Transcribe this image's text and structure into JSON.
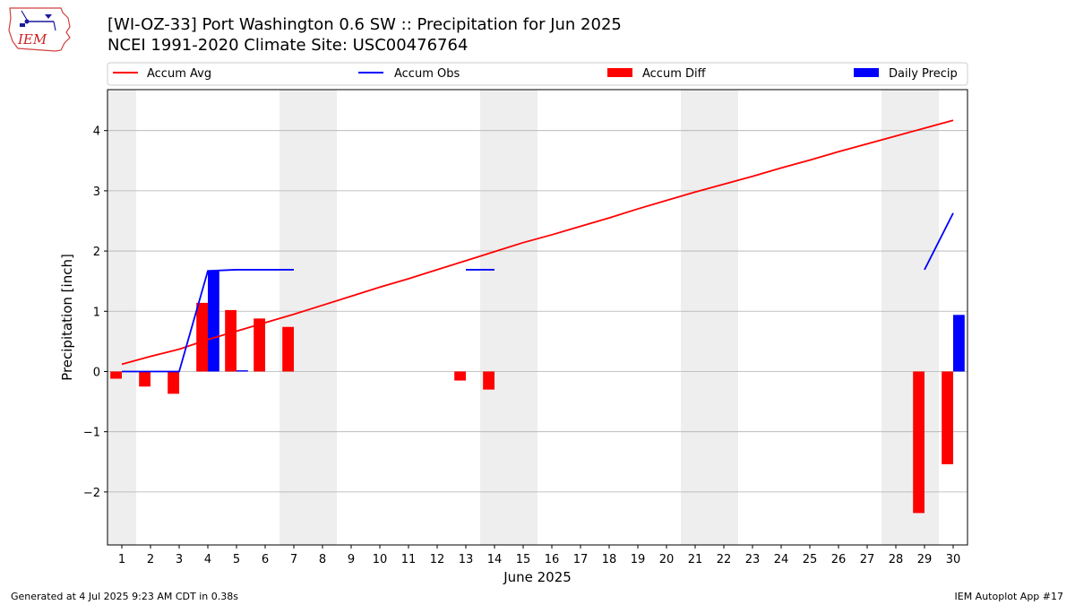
{
  "header": {
    "title_line1": "[WI-OZ-33] Port Washington 0.6 SW :: Precipitation for Jun 2025",
    "title_line2": "NCEI 1991-2020 Climate Site: USC00476764",
    "logo_text": "IEM"
  },
  "footer": {
    "generated": "Generated at 4 Jul 2025 9:23 AM CDT in 0.38s",
    "app": "IEM Autoplot App #17"
  },
  "colors": {
    "accum_avg": "#ff0000",
    "accum_obs": "#0000ff",
    "accum_diff": "#ff0000",
    "daily_precip": "#0000ff",
    "weekend_shade": "#eeeeee",
    "grid": "#b0b0b0"
  },
  "chart_data": {
    "type": "bar",
    "xlabel": "June 2025",
    "ylabel": "Precipitation [inch]",
    "xlim": [
      0.5,
      30.5
    ],
    "ylim": [
      -2.88,
      4.68
    ],
    "yticks": [
      -2,
      -1,
      0,
      1,
      2,
      3,
      4
    ],
    "ytick_labels": [
      "−2",
      "−1",
      "0",
      "1",
      "2",
      "3",
      "4"
    ],
    "days": [
      1,
      2,
      3,
      4,
      5,
      6,
      7,
      8,
      9,
      10,
      11,
      12,
      13,
      14,
      15,
      16,
      17,
      18,
      19,
      20,
      21,
      22,
      23,
      24,
      25,
      26,
      27,
      28,
      29,
      30
    ],
    "grid": "horizontal",
    "legend": {
      "placement": "top",
      "entries": [
        "Accum Avg",
        "Accum Obs",
        "Accum Diff",
        "Daily Precip"
      ]
    },
    "weekend_shading": [
      [
        1,
        1
      ],
      [
        7,
        8
      ],
      [
        14,
        15
      ],
      [
        21,
        22
      ],
      [
        28,
        29
      ]
    ],
    "series": [
      {
        "name": "Accum Avg",
        "kind": "line",
        "color": "#ff0000",
        "x": [
          1,
          2,
          3,
          4,
          5,
          6,
          7,
          8,
          9,
          10,
          11,
          12,
          13,
          14,
          15,
          16,
          17,
          18,
          19,
          20,
          21,
          22,
          23,
          24,
          25,
          26,
          27,
          28,
          29,
          30
        ],
        "values": [
          0.12,
          0.25,
          0.37,
          0.53,
          0.67,
          0.81,
          0.95,
          1.1,
          1.25,
          1.4,
          1.54,
          1.69,
          1.84,
          1.99,
          2.14,
          2.27,
          2.41,
          2.55,
          2.7,
          2.84,
          2.98,
          3.11,
          3.24,
          3.38,
          3.51,
          3.65,
          3.78,
          3.91,
          4.04,
          4.17
        ]
      },
      {
        "name": "Accum Obs",
        "kind": "line",
        "color": "#0000ff",
        "segments": [
          {
            "x": [
              1,
              2,
              3,
              4,
              5,
              6,
              7
            ],
            "values": [
              0.0,
              0.0,
              0.0,
              1.67,
              1.69,
              1.69,
              1.69
            ]
          },
          {
            "x": [
              13,
              14
            ],
            "values": [
              1.69,
              1.69
            ]
          },
          {
            "x": [
              29,
              30
            ],
            "values": [
              1.69,
              2.63
            ]
          }
        ]
      },
      {
        "name": "Accum Diff",
        "kind": "bar",
        "color": "#ff0000",
        "x": [
          1,
          2,
          3,
          4,
          5,
          6,
          7,
          13,
          14,
          29,
          30
        ],
        "values": [
          -0.12,
          -0.25,
          -0.37,
          1.14,
          1.02,
          0.88,
          0.74,
          -0.15,
          -0.3,
          -2.35,
          -1.54
        ]
      },
      {
        "name": "Daily Precip",
        "kind": "bar",
        "color": "#0000ff",
        "x": [
          4,
          5,
          30
        ],
        "values": [
          1.67,
          0.02,
          0.94
        ]
      }
    ]
  }
}
